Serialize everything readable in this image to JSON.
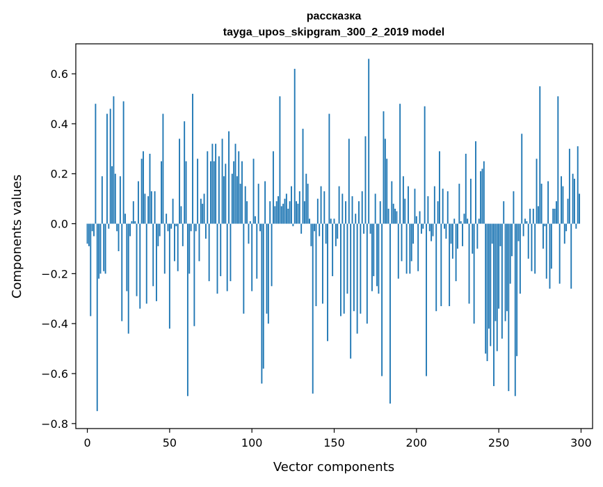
{
  "chart_data": {
    "type": "bar",
    "title": "рассказка",
    "subtitle": "tayga_upos_skipgram_300_2_2019 model",
    "xlabel": "Vector components",
    "ylabel": "Components values",
    "xlim": [
      -7,
      307
    ],
    "ylim": [
      -0.82,
      0.72
    ],
    "xticks": [
      0,
      50,
      100,
      150,
      200,
      250,
      300
    ],
    "xtick_labels": [
      "0",
      "50",
      "100",
      "150",
      "200",
      "250",
      "300"
    ],
    "yticks": [
      -0.8,
      -0.6,
      -0.4,
      -0.2,
      0.0,
      0.2,
      0.4,
      0.6
    ],
    "ytick_labels": [
      "−0.8",
      "−0.6",
      "−0.4",
      "−0.2",
      "0.0",
      "0.2",
      "0.4",
      "0.6"
    ],
    "grid": false,
    "bar_color": "#1f77b4",
    "x_start": 0,
    "values": [
      -0.08,
      -0.09,
      -0.37,
      -0.03,
      -0.05,
      0.48,
      -0.75,
      -0.22,
      -0.2,
      0.19,
      -0.19,
      -0.2,
      0.44,
      -0.02,
      0.46,
      0.23,
      0.51,
      0.2,
      -0.03,
      -0.11,
      0.19,
      -0.39,
      0.49,
      0.04,
      -0.27,
      -0.44,
      -0.05,
      0.01,
      0.09,
      0.01,
      -0.29,
      0.17,
      -0.34,
      0.26,
      0.29,
      0.12,
      -0.32,
      0.11,
      0.28,
      0.13,
      -0.25,
      0.13,
      -0.31,
      -0.09,
      -0.05,
      0.25,
      0.44,
      -0.2,
      0.04,
      -0.03,
      -0.42,
      -0.02,
      0.1,
      -0.15,
      -0.01,
      -0.19,
      0.34,
      0.07,
      -0.09,
      0.41,
      0.25,
      -0.69,
      -0.2,
      -0.03,
      0.52,
      -0.41,
      -0.03,
      0.26,
      -0.15,
      0.1,
      0.08,
      0.12,
      -0.06,
      0.29,
      -0.23,
      0.25,
      0.32,
      0.25,
      0.32,
      -0.28,
      0.27,
      -0.21,
      0.34,
      0.19,
      0.24,
      -0.27,
      0.37,
      -0.23,
      0.2,
      0.25,
      0.32,
      0.19,
      0.29,
      0.16,
      0.25,
      -0.36,
      0.15,
      0.09,
      -0.08,
      0.01,
      -0.27,
      0.26,
      0.03,
      -0.22,
      0.16,
      -0.03,
      -0.64,
      -0.58,
      0.17,
      -0.36,
      -0.4,
      0.09,
      -0.25,
      0.29,
      0.07,
      0.09,
      0.11,
      0.51,
      0.07,
      0.08,
      0.1,
      0.12,
      0.06,
      0.09,
      0.15,
      -0.01,
      0.62,
      0.09,
      0.08,
      0.13,
      -0.04,
      0.38,
      0.09,
      0.2,
      0.16,
      0.02,
      -0.09,
      -0.68,
      -0.03,
      -0.33,
      0.1,
      -0.05,
      0.15,
      -0.32,
      0.13,
      -0.08,
      -0.47,
      0.44,
      0.02,
      -0.21,
      0.02,
      -0.09,
      -0.06,
      0.15,
      -0.37,
      0.12,
      -0.36,
      0.09,
      -0.28,
      0.34,
      -0.54,
      0.11,
      -0.35,
      0.04,
      -0.44,
      0.09,
      -0.36,
      0.13,
      -0.04,
      0.35,
      -0.4,
      0.66,
      -0.04,
      -0.27,
      -0.21,
      0.12,
      -0.25,
      -0.28,
      0.09,
      -0.61,
      0.45,
      0.34,
      0.26,
      0.06,
      -0.72,
      0.17,
      0.08,
      0.06,
      0.05,
      -0.22,
      0.48,
      -0.15,
      0.19,
      0.1,
      -0.2,
      0.15,
      -0.2,
      -0.15,
      -0.08,
      0.14,
      0.03,
      -0.19,
      0.05,
      -0.04,
      -0.02,
      0.47,
      -0.61,
      0.11,
      -0.03,
      -0.07,
      -0.05,
      0.15,
      -0.35,
      0.09,
      0.29,
      -0.33,
      0.14,
      -0.02,
      -0.06,
      0.13,
      -0.33,
      -0.08,
      -0.14,
      0.02,
      -0.23,
      -0.1,
      0.16,
      0.01,
      -0.09,
      0.04,
      0.28,
      0.02,
      -0.32,
      0.18,
      -0.12,
      -0.4,
      0.33,
      -0.1,
      0.02,
      0.21,
      0.22,
      0.25,
      -0.52,
      -0.55,
      -0.42,
      -0.49,
      -0.08,
      -0.65,
      -0.39,
      -0.51,
      -0.34,
      -0.09,
      -0.46,
      0.09,
      -0.39,
      -0.35,
      -0.67,
      -0.24,
      -0.13,
      0.13,
      -0.69,
      -0.53,
      -0.07,
      -0.28,
      0.36,
      -0.05,
      0.02,
      0.01,
      -0.14,
      0.06,
      -0.19,
      0.06,
      -0.2,
      0.26,
      0.07,
      0.55,
      0.16,
      -0.1,
      -0.01,
      -0.22,
      0.17,
      -0.26,
      -0.18,
      0.06,
      0.06,
      0.09,
      0.51,
      -0.24,
      0.19,
      0.15,
      -0.08,
      -0.03,
      0.1,
      0.3,
      -0.26,
      0.2,
      0.18,
      -0.02,
      0.31,
      0.12
    ]
  }
}
